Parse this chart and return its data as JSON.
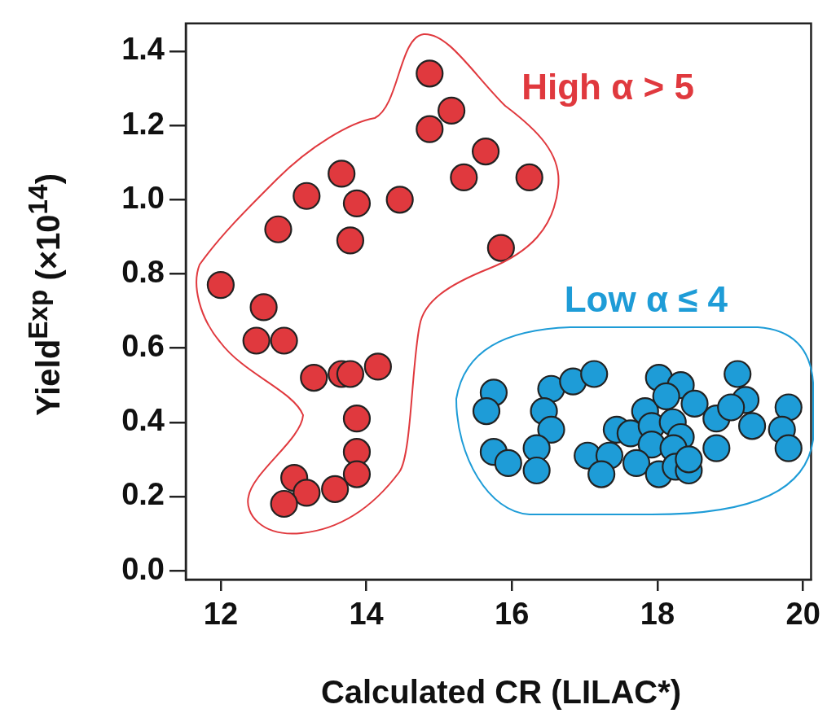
{
  "chart_data": {
    "type": "scatter",
    "xlabel": "Calculated CR (LILAC*)",
    "ylabel": "Yield$^{Exp}$ (×10$^{14}$)",
    "xlim": [
      11.52,
      20.11
    ],
    "ylim": [
      -0.024,
      1.475
    ],
    "xticks": [
      12,
      14,
      16,
      18,
      20
    ],
    "yticks": [
      {
        "value": 0,
        "label": "0.0"
      },
      {
        "value": 0.2,
        "label": "0.2"
      },
      {
        "value": 0.4,
        "label": "0.4"
      },
      {
        "value": 0.6,
        "label": "0.6"
      },
      {
        "value": 0.8,
        "label": "0.8"
      },
      {
        "value": 1.0,
        "label": "1.0"
      },
      {
        "value": 1.2,
        "label": "1.2"
      },
      {
        "value": 1.4,
        "label": "1.4"
      }
    ],
    "grid": false,
    "legend": false,
    "marker": "circle",
    "series": [
      {
        "color": "#e0393e",
        "x": [
          12.0,
          12.59,
          12.49,
          12.87,
          12.79,
          13.18,
          13.66,
          13.87,
          13.78,
          14.46,
          14.87,
          14.87,
          15.17,
          15.34,
          15.64,
          16.24,
          15.85,
          13.28,
          13.66,
          13.78,
          14.16,
          13.87,
          13.87,
          13.87,
          13.57,
          13.01,
          13.18,
          12.87
        ],
        "values": [
          0.77,
          0.71,
          0.62,
          0.62,
          0.92,
          1.01,
          1.07,
          0.99,
          0.89,
          1.0,
          1.34,
          1.19,
          1.24,
          1.06,
          1.13,
          1.06,
          0.87,
          0.52,
          0.53,
          0.53,
          0.55,
          0.41,
          0.32,
          0.26,
          0.22,
          0.25,
          0.21,
          0.18
        ]
      },
      {
        "color": "#1e9cd7",
        "x": [
          15.75,
          15.65,
          15.75,
          15.95,
          16.54,
          16.84,
          17.13,
          16.44,
          16.54,
          16.34,
          16.34,
          17.04,
          17.34,
          17.23,
          17.44,
          17.63,
          17.83,
          18.02,
          18.32,
          18.12,
          17.92,
          18.21,
          18.32,
          17.92,
          18.22,
          17.71,
          18.02,
          18.25,
          18.43,
          18.43,
          18.51,
          18.81,
          18.81,
          19.1,
          19.21,
          19.01,
          19.3,
          19.8,
          19.71,
          19.8
        ],
        "values": [
          0.48,
          0.43,
          0.32,
          0.29,
          0.49,
          0.51,
          0.53,
          0.43,
          0.38,
          0.33,
          0.27,
          0.31,
          0.31,
          0.26,
          0.38,
          0.37,
          0.43,
          0.52,
          0.5,
          0.47,
          0.39,
          0.4,
          0.36,
          0.34,
          0.33,
          0.29,
          0.26,
          0.28,
          0.27,
          0.3,
          0.45,
          0.41,
          0.33,
          0.53,
          0.46,
          0.44,
          0.39,
          0.44,
          0.38,
          0.33
        ]
      }
    ],
    "annotations": [
      "High α > 5",
      "Low α ≤ 4"
    ]
  }
}
